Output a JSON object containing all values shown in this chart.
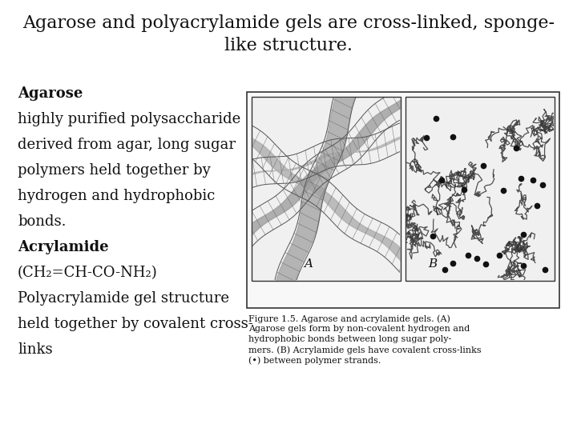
{
  "title_line1": "Agarose and polyacrylamide gels are cross-linked, sponge-",
  "title_line2": "like structure.",
  "title_fontsize": 16,
  "body_lines": [
    [
      "Agarose",
      true
    ],
    [
      "highly purified polysaccharide",
      false
    ],
    [
      "derived from agar, long sugar",
      false
    ],
    [
      "polymers held together by",
      false
    ],
    [
      "hydrogen and hydrophobic",
      false
    ],
    [
      "bonds.",
      false
    ],
    [
      "Acrylamide",
      true
    ],
    [
      "(CH₂=CH-CO-NH₂)",
      false
    ],
    [
      "Polyacrylamide gel structure",
      false
    ],
    [
      "held together by covalent cross-",
      false
    ],
    [
      "links",
      false
    ]
  ],
  "body_fontsize": 13.0,
  "caption_lines": [
    "Figure 1.5. Agarose and acrylamide gels. (A)",
    "Agarose gels form by non-covalent hydrogen and",
    "hydrophobic bonds between long sugar poly-",
    "mers. (B) Acrylamide gels have covalent cross-links",
    "(•) between polymer strands."
  ],
  "caption_fontsize": 8.0,
  "bg_color": "#ffffff",
  "text_color": "#111111"
}
